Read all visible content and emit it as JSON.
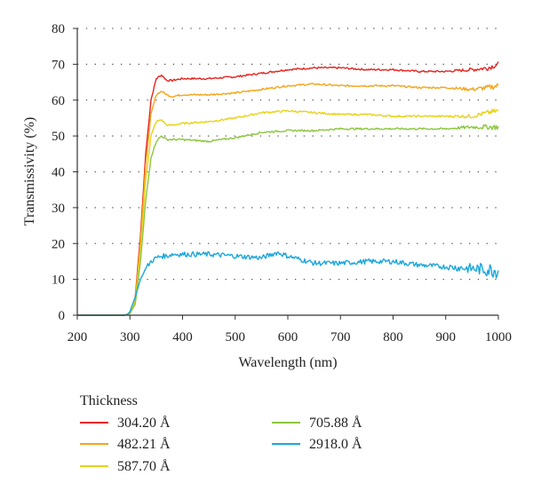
{
  "chart_data": {
    "type": "line",
    "xlabel": "Wavelength (nm)",
    "ylabel": "Transmissivity (%)",
    "xlim": [
      200,
      1000
    ],
    "ylim": [
      0,
      80
    ],
    "xticks": [
      "200",
      "300",
      "400",
      "500",
      "600",
      "700",
      "800",
      "900",
      "1000"
    ],
    "yticks": [
      "0",
      "10",
      "20",
      "30",
      "40",
      "50",
      "60",
      "70",
      "80"
    ],
    "grid": "horizontal dotted",
    "legend": {
      "title": "Thickness",
      "placement": "bottom"
    },
    "series": [
      {
        "name": "304.20 Å",
        "color": "#e8231e",
        "noise": 0.25,
        "x": [
          200,
          290,
          300,
          310,
          320,
          330,
          340,
          350,
          360,
          370,
          380,
          400,
          450,
          500,
          550,
          600,
          650,
          700,
          750,
          800,
          850,
          900,
          950,
          980,
          1000
        ],
        "y": [
          0,
          0,
          0.5,
          5,
          22,
          45,
          60,
          66,
          67,
          65.5,
          65.5,
          66,
          66,
          66.5,
          67.5,
          68.5,
          69,
          69,
          68.5,
          68.5,
          68,
          68,
          68.5,
          69,
          70
        ]
      },
      {
        "name": "482.21 Å",
        "color": "#f5a51c",
        "noise": 0.25,
        "x": [
          200,
          290,
          300,
          310,
          320,
          330,
          340,
          350,
          360,
          370,
          380,
          400,
          450,
          500,
          550,
          600,
          650,
          700,
          750,
          800,
          850,
          900,
          950,
          980,
          1000
        ],
        "y": [
          0,
          0,
          0.5,
          4,
          20,
          42,
          56,
          61.5,
          62.5,
          61.5,
          61,
          61.5,
          61.5,
          62,
          63,
          64,
          64.5,
          64,
          64,
          64,
          63.5,
          63.5,
          63,
          63.5,
          64
        ]
      },
      {
        "name": "587.70 Å",
        "color": "#e8d21a",
        "noise": 0.25,
        "x": [
          200,
          290,
          300,
          310,
          320,
          330,
          340,
          350,
          360,
          370,
          380,
          400,
          450,
          500,
          550,
          600,
          650,
          700,
          750,
          800,
          850,
          900,
          950,
          980,
          1000
        ],
        "y": [
          0,
          0,
          0.5,
          4,
          18,
          38,
          50,
          54,
          54.5,
          53,
          53,
          53.5,
          54,
          55,
          56.5,
          57,
          56.5,
          56,
          56,
          55.5,
          55.5,
          55.5,
          55.5,
          56.5,
          57
        ]
      },
      {
        "name": "705.88 Å",
        "color": "#8cc63f",
        "noise": 0.25,
        "x": [
          200,
          290,
          300,
          310,
          320,
          330,
          340,
          350,
          360,
          370,
          380,
          400,
          450,
          500,
          550,
          600,
          650,
          700,
          750,
          800,
          850,
          900,
          950,
          980,
          1000
        ],
        "y": [
          0,
          0,
          0.5,
          3,
          15,
          32,
          44,
          48.5,
          50,
          49,
          49,
          49,
          48.5,
          49.5,
          51,
          51.5,
          51.5,
          52,
          52,
          52,
          52,
          52,
          52.5,
          52.5,
          52.5
        ]
      },
      {
        "name": "2918.0 Å",
        "color": "#1aa7dc",
        "noise": 0.7,
        "x": [
          200,
          290,
          295,
          300,
          310,
          320,
          330,
          340,
          350,
          360,
          370,
          380,
          400,
          450,
          500,
          550,
          580,
          600,
          650,
          700,
          750,
          800,
          850,
          900,
          950,
          1000
        ],
        "y": [
          0,
          0,
          0.2,
          1,
          5,
          10,
          13,
          15,
          16,
          16.5,
          16.5,
          17,
          17,
          17,
          16.5,
          16,
          17.5,
          16.5,
          14.5,
          14.5,
          15,
          15,
          14,
          13.5,
          13,
          12.5
        ]
      }
    ]
  }
}
